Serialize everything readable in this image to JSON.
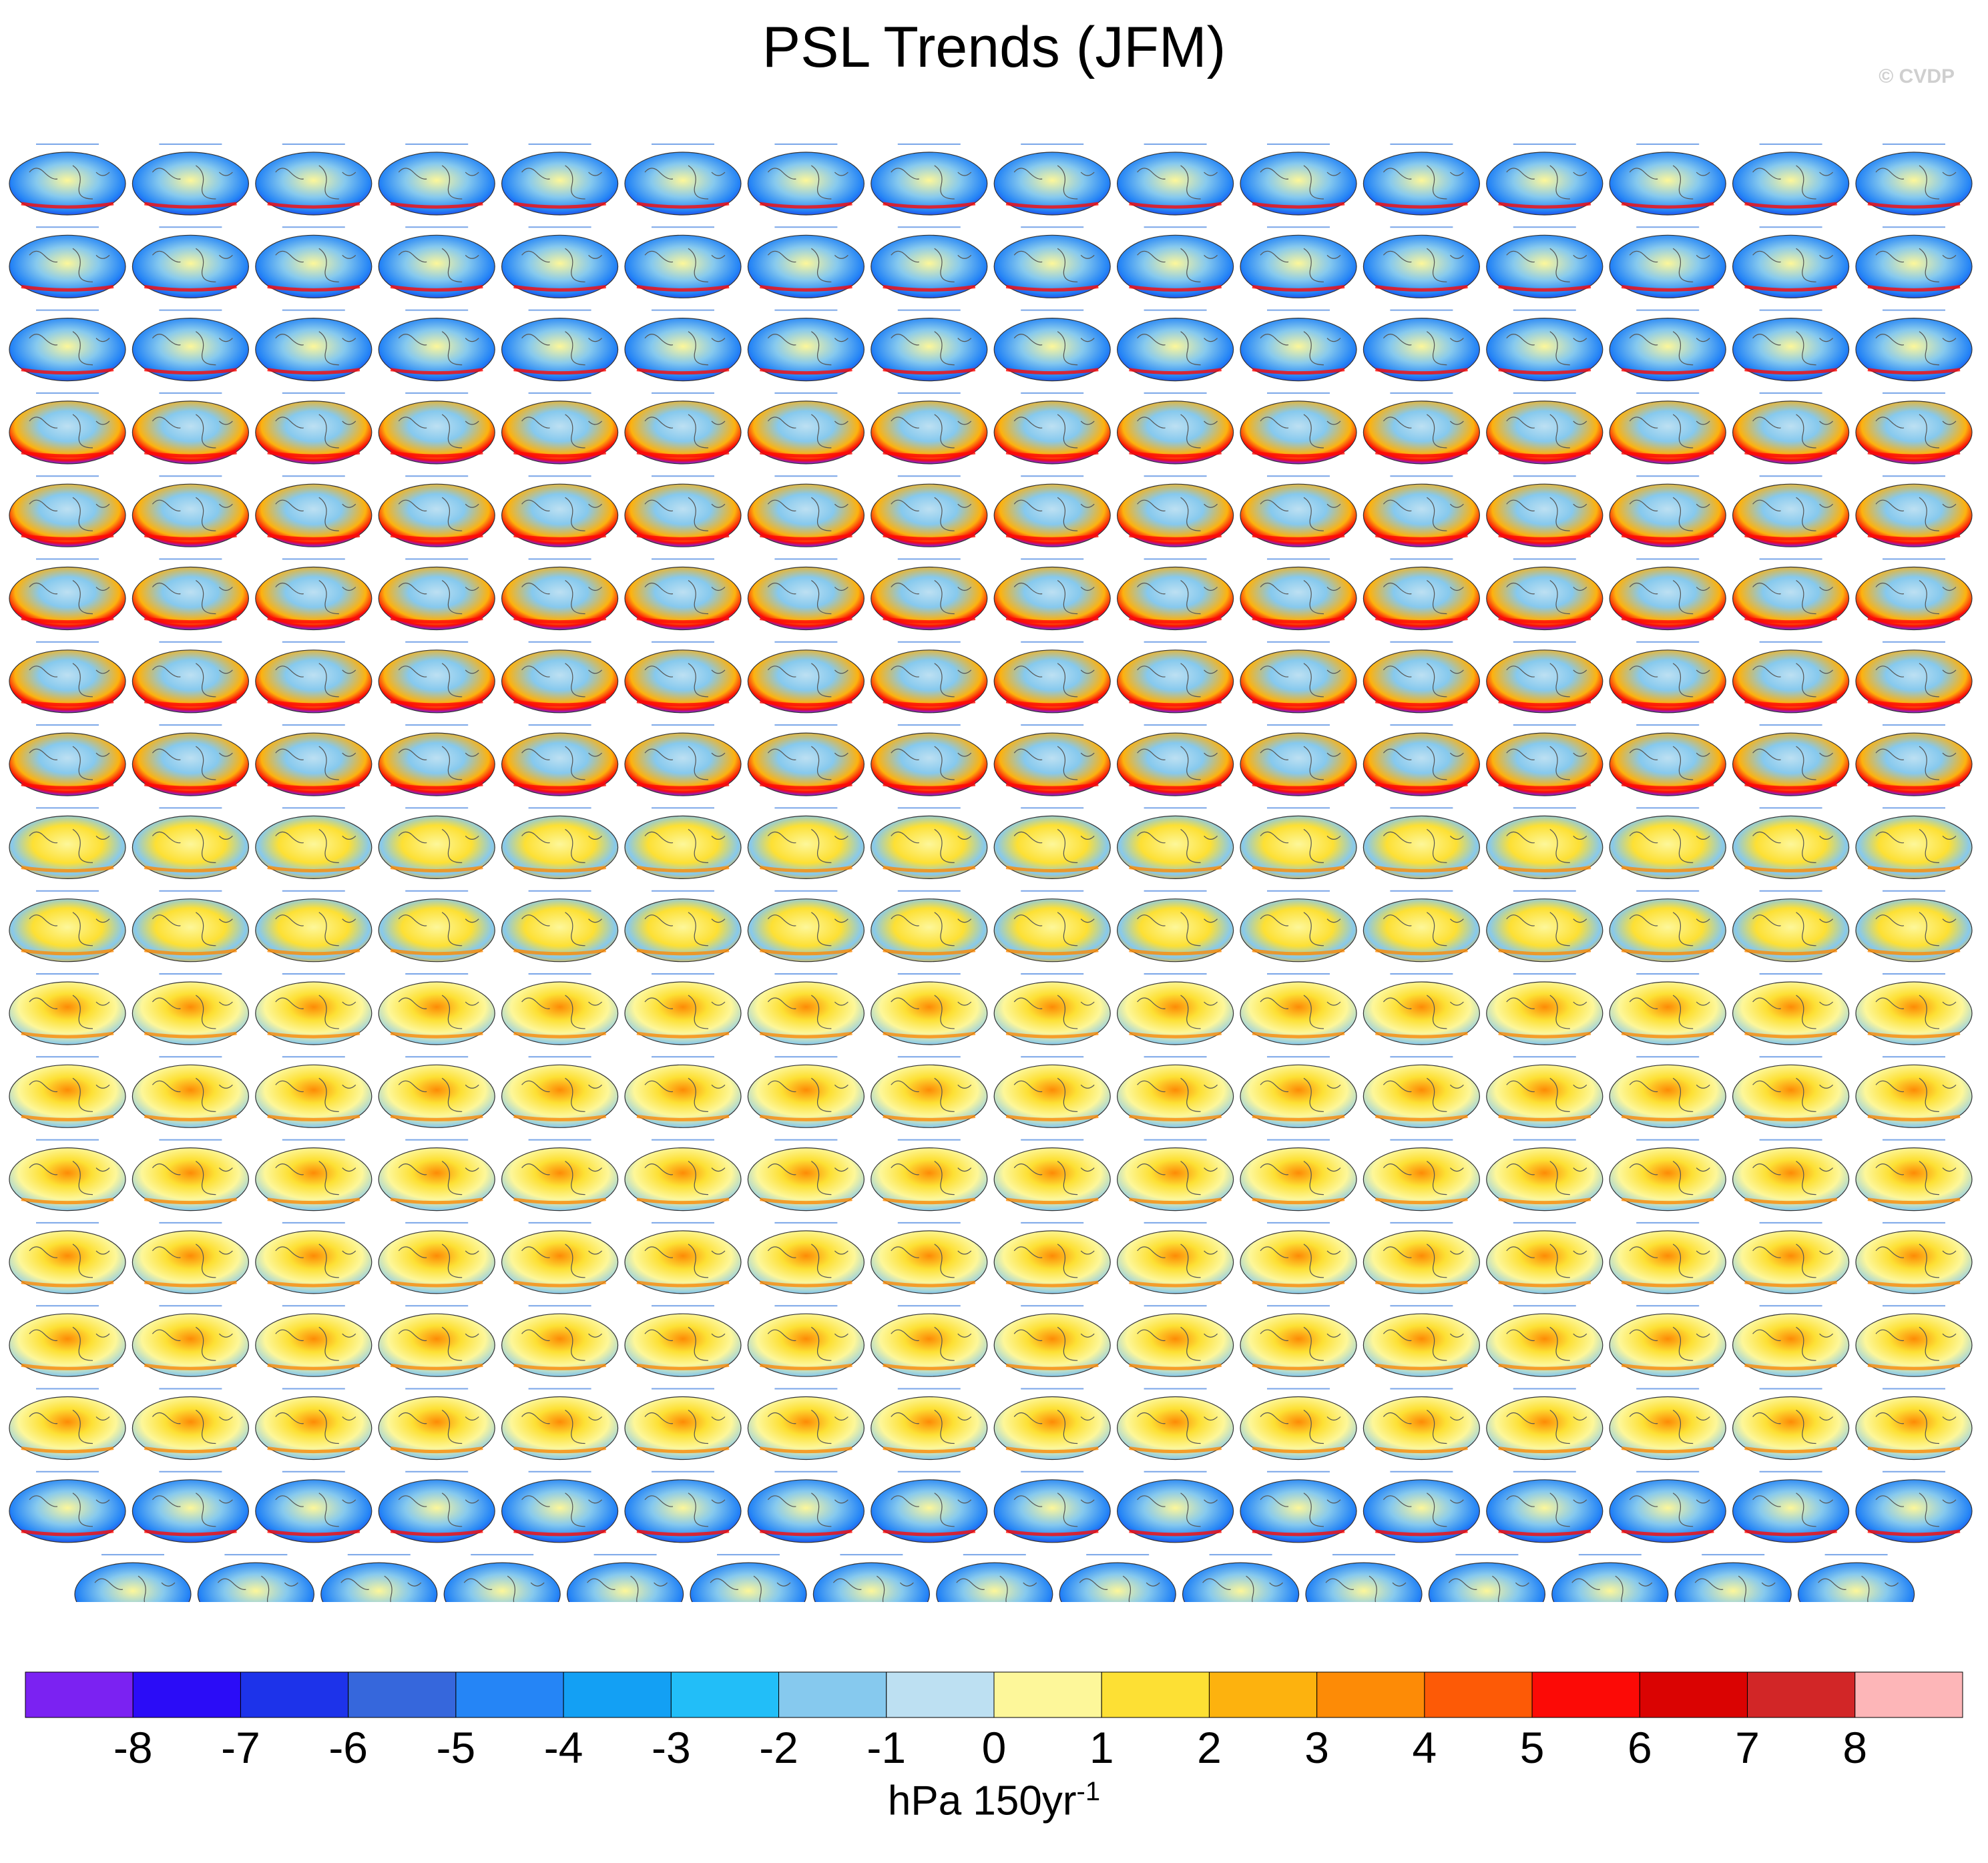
{
  "title": "PSL Trends (JFM)",
  "watermark": "© CVDP",
  "chart_data": {
    "type": "heatmap",
    "title": "PSL Trends (JFM)",
    "description_of_panels": "Small-multiple global map panels of sea level pressure trends, one per ensemble member",
    "panel_rows": 18,
    "panels_per_full_row": 16,
    "last_row_panels": 15,
    "panel_groups": [
      {
        "model": "ACCESS-ESM1-5",
        "tint": "cool"
      },
      {
        "model": "CanESM5",
        "tint": "cool-strong"
      },
      {
        "model": "CESM1",
        "tint": "warm"
      },
      {
        "model": "CESM2",
        "tint": "warm-strong"
      },
      {
        "model": "CESM2-SF",
        "tint": "cool"
      }
    ],
    "colorbar": {
      "levels": [
        -8,
        -7,
        -6,
        -5,
        -4,
        -3,
        -2,
        -1,
        0,
        1,
        2,
        3,
        4,
        5,
        6,
        7,
        8
      ],
      "tick_labels": [
        "-8",
        "-7",
        "-6",
        "-5",
        "-4",
        "-3",
        "-2",
        "-1",
        "0",
        "1",
        "2",
        "3",
        "4",
        "5",
        "6",
        "7",
        "8"
      ],
      "colors": [
        "#7b22f2",
        "#2b0cf7",
        "#1d33ea",
        "#3667dc",
        "#2585f6",
        "#13a0f4",
        "#22bef8",
        "#86c9ee",
        "#bde0f2",
        "#fdf79a",
        "#fde034",
        "#fdb20e",
        "#fd8b06",
        "#fd5a06",
        "#fc0a06",
        "#da0302",
        "#d22627",
        "#fdb6b8"
      ],
      "unit": "hPa 150yr",
      "unit_exponent": "-1"
    }
  }
}
